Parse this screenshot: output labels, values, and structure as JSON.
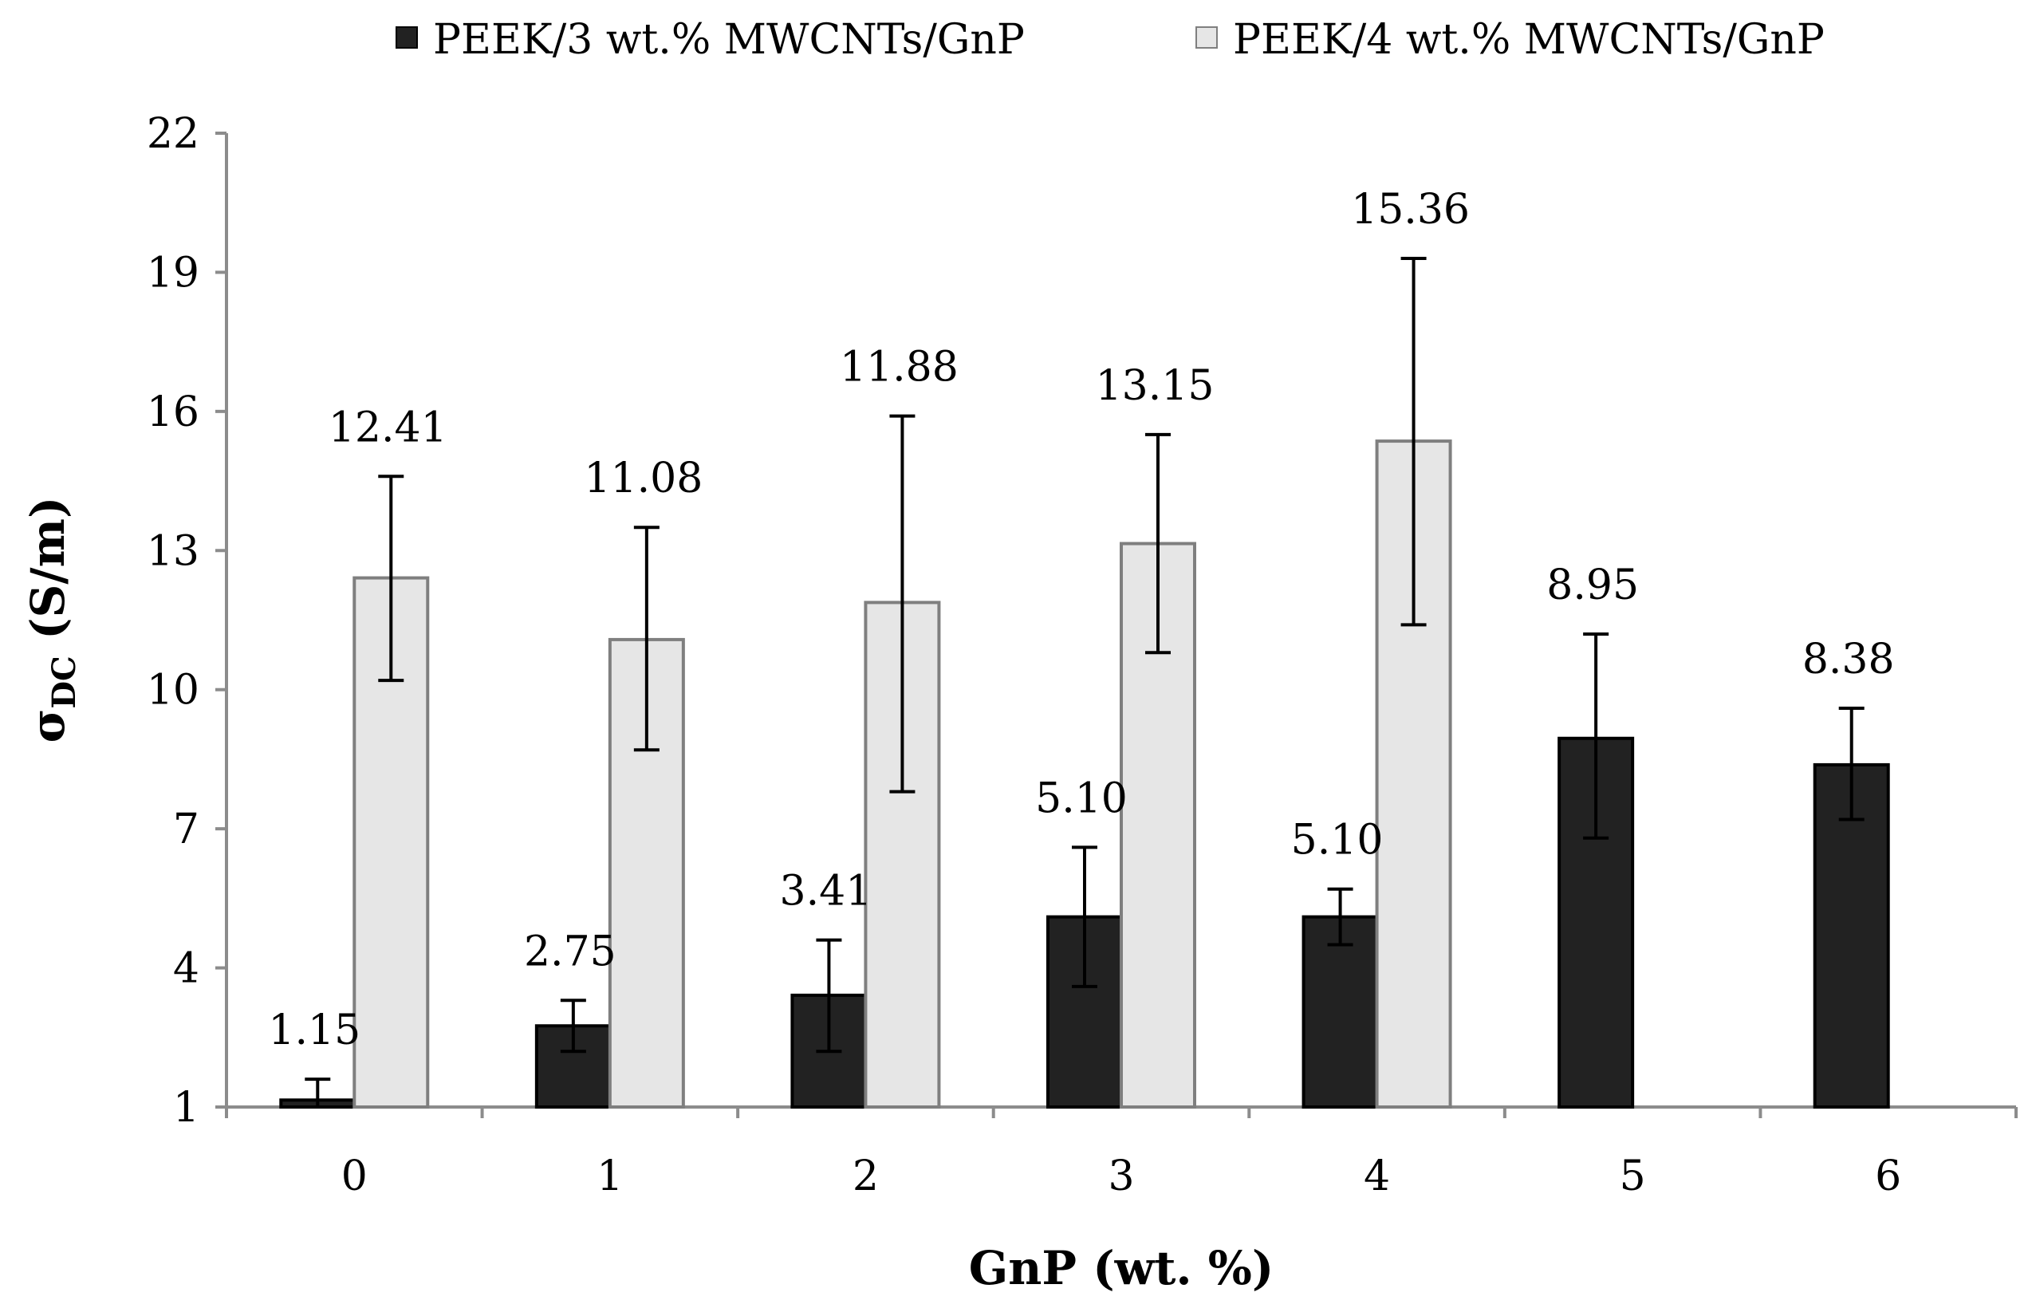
{
  "chart_data": {
    "type": "bar",
    "title": "",
    "xlabel": "GnP (wt. %)",
    "ylabel": "σ",
    "ylabel_sub": "DC",
    "ylabel_unit": " (S/m)",
    "ylim": [
      1,
      22
    ],
    "yticks": [
      1,
      4,
      7,
      10,
      13,
      16,
      19,
      22
    ],
    "categories": [
      "0",
      "1",
      "2",
      "3",
      "4",
      "5",
      "6"
    ],
    "legend_position": "top",
    "series": [
      {
        "name": "PEEK/3 wt.% MWCNTs/GnP",
        "color": "#222222",
        "stroke": "#000000",
        "values": [
          1.15,
          2.75,
          3.41,
          5.1,
          5.1,
          8.95,
          8.38
        ],
        "labels": [
          "1.15",
          "2.75",
          "3.41",
          "5.10",
          "5.10",
          "8.95",
          "8.38"
        ],
        "err_low": [
          1.0,
          2.2,
          2.2,
          3.6,
          4.5,
          6.8,
          7.2
        ],
        "err_high": [
          1.6,
          3.3,
          4.6,
          6.6,
          5.7,
          11.2,
          9.6
        ]
      },
      {
        "name": "PEEK/4 wt.% MWCNTs/GnP",
        "color": "#e6e6e6",
        "stroke": "#7f7f7f",
        "values": [
          12.41,
          11.08,
          11.88,
          13.15,
          15.36,
          null,
          null
        ],
        "labels": [
          "12.41",
          "11.08",
          "11.88",
          "13.15",
          "15.36",
          null,
          null
        ],
        "err_low": [
          10.2,
          8.7,
          7.8,
          10.8,
          11.4,
          null,
          null
        ],
        "err_high": [
          14.6,
          13.5,
          15.9,
          15.5,
          19.3,
          null,
          null
        ]
      }
    ]
  }
}
